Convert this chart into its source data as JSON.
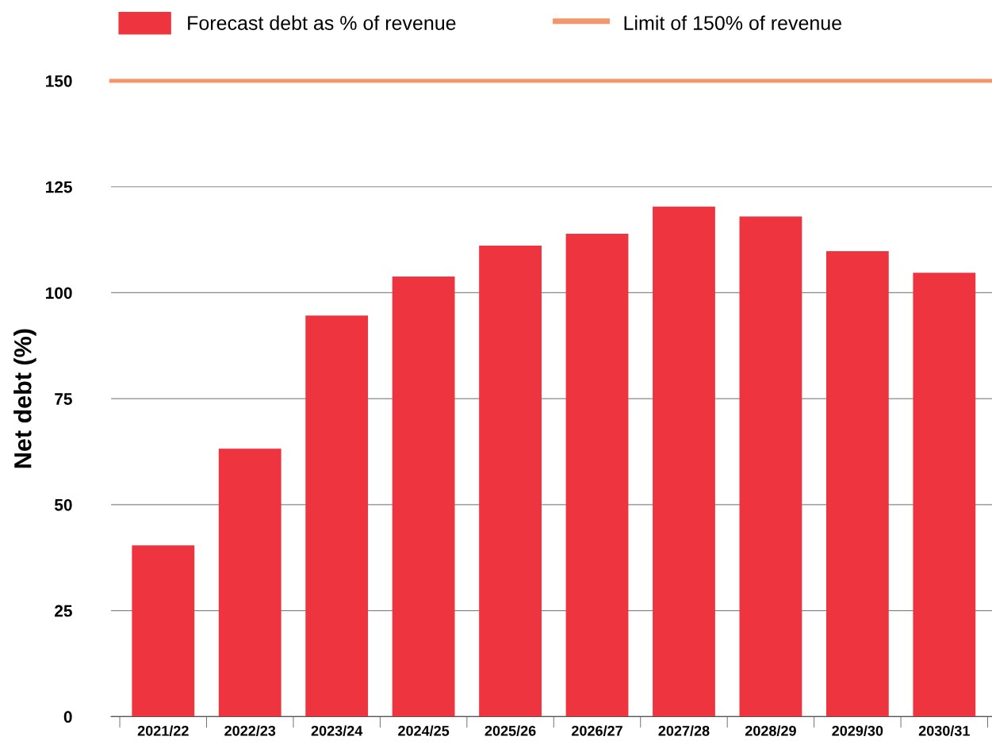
{
  "chart_data": {
    "type": "bar",
    "ylabel": "Net debt (%)",
    "categories": [
      "2021/22",
      "2022/23",
      "2023/24",
      "2024/25",
      "2025/26",
      "2026/27",
      "2027/28",
      "2028/29",
      "2029/30",
      "2030/31"
    ],
    "series": [
      {
        "name": "Forecast debt as % of revenue",
        "color": "#ee343f",
        "values": [
          40.4,
          63.2,
          94.6,
          103.8,
          111.1,
          113.9,
          120.3,
          118.0,
          109.8,
          104.7
        ]
      }
    ],
    "ylim": [
      0,
      150
    ],
    "yticks": [
      0,
      25,
      50,
      75,
      100,
      125,
      150
    ],
    "ref_lines": [
      {
        "axis": "y",
        "value": 150,
        "label": "Limit of 150% of revenue",
        "color": "#f4956a"
      }
    ],
    "grid": "y",
    "legend": "top"
  }
}
